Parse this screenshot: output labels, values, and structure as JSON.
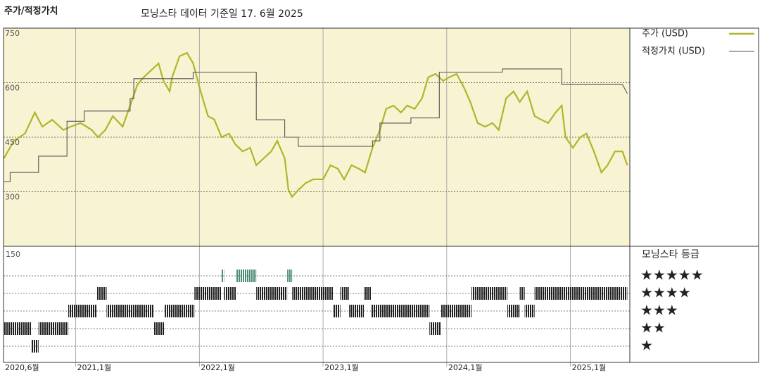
{
  "chart_data": {
    "type": "line",
    "title": "주가/적정가치",
    "subtitle": "모닝스타 데이터 기준일 17. 6월 2025",
    "xlim": [
      2020.4167,
      2025.48
    ],
    "xticks": [
      {
        "value": 2020.4167,
        "label": "2020,6월"
      },
      {
        "value": 2021,
        "label": "2021,1월"
      },
      {
        "value": 2022,
        "label": "2022,1월"
      },
      {
        "value": 2023,
        "label": "2023,1월"
      },
      {
        "value": 2024,
        "label": "2024,1월"
      },
      {
        "value": 2025,
        "label": "2025,1월"
      }
    ],
    "ylim": [
      150,
      750
    ],
    "yticks": [
      300,
      450,
      600,
      750
    ],
    "grid": true,
    "background": "#f8f3d3",
    "series": [
      {
        "name": "주가 (USD)",
        "color": "#b0b52a",
        "x": [
          2020.42,
          2020.5,
          2020.59,
          2020.67,
          2020.73,
          2020.81,
          2020.9,
          2020.96,
          2021.04,
          2021.13,
          2021.18,
          2021.24,
          2021.3,
          2021.38,
          2021.44,
          2021.5,
          2021.55,
          2021.61,
          2021.67,
          2021.71,
          2021.76,
          2021.78,
          2021.84,
          2021.9,
          2021.95,
          2022.01,
          2022.07,
          2022.12,
          2022.18,
          2022.24,
          2022.29,
          2022.35,
          2022.41,
          2022.46,
          2022.52,
          2022.58,
          2022.63,
          2022.69,
          2022.72,
          2022.75,
          2022.8,
          2022.86,
          2022.92,
          2023.0,
          2023.06,
          2023.12,
          2023.17,
          2023.23,
          2023.29,
          2023.34,
          2023.4,
          2023.46,
          2023.51,
          2023.57,
          2023.63,
          2023.68,
          2023.74,
          2023.8,
          2023.85,
          2023.91,
          2023.97,
          2024.02,
          2024.08,
          2024.14,
          2024.19,
          2024.25,
          2024.31,
          2024.37,
          2024.42,
          2024.48,
          2024.54,
          2024.59,
          2024.65,
          2024.71,
          2024.76,
          2024.82,
          2024.88,
          2024.93,
          2024.96,
          2025.02,
          2025.08,
          2025.13,
          2025.19,
          2025.25,
          2025.3,
          2025.36,
          2025.42,
          2025.46
        ],
        "values": [
          392,
          440,
          460,
          518,
          479,
          498,
          470,
          479,
          489,
          470,
          450,
          470,
          508,
          479,
          537,
          595,
          615,
          634,
          653,
          605,
          576,
          615,
          673,
          682,
          653,
          576,
          508,
          499,
          450,
          460,
          431,
          411,
          421,
          373,
          392,
          411,
          440,
          392,
          305,
          286,
          305,
          324,
          334,
          334,
          373,
          363,
          334,
          373,
          363,
          353,
          421,
          470,
          528,
          537,
          518,
          537,
          528,
          557,
          615,
          624,
          605,
          615,
          624,
          586,
          547,
          489,
          479,
          489,
          470,
          557,
          576,
          547,
          576,
          508,
          499,
          489,
          518,
          537,
          450,
          421,
          450,
          460,
          411,
          353,
          373,
          411,
          411,
          373
        ]
      },
      {
        "name": "적정가치 (USD)",
        "color": "#555555",
        "x": [
          2020.42,
          2020.47,
          2020.47,
          2020.7,
          2020.7,
          2020.93,
          2020.93,
          2021.07,
          2021.07,
          2021.44,
          2021.44,
          2021.47,
          2021.47,
          2021.95,
          2021.95,
          2022.46,
          2022.46,
          2022.69,
          2022.69,
          2022.8,
          2022.8,
          2023.4,
          2023.4,
          2023.46,
          2023.46,
          2023.71,
          2023.71,
          2023.94,
          2023.94,
          2024.45,
          2024.45,
          2024.93,
          2024.93,
          2025.42,
          2025.46
        ],
        "values": [
          328,
          328,
          353,
          353,
          398,
          398,
          494,
          494,
          522,
          522,
          556,
          556,
          611,
          611,
          629,
          629,
          498,
          498,
          450,
          450,
          425,
          425,
          440,
          440,
          489,
          489,
          503,
          503,
          629,
          629,
          638,
          638,
          595,
          595,
          570
        ]
      }
    ],
    "ratings_title": "모닝스타 등급",
    "ratings_axis_label": "150",
    "star_labels": [
      "★★★★★",
      "★★★★",
      "★★★",
      "★★",
      "★"
    ],
    "rating_color": "#222222",
    "top_rating_color": "#4e8c78",
    "rating_edges": [
      2020.42,
      2020.64,
      2020.7,
      2020.94,
      2021.17,
      2021.25,
      2021.63,
      2021.72,
      2021.96,
      2022.18,
      2022.2,
      2022.3,
      2022.46,
      2022.71,
      2022.75,
      2023.08,
      2023.14,
      2023.21,
      2023.33,
      2023.39,
      2023.86,
      2023.95,
      2024.2,
      2024.49,
      2024.59,
      2024.63,
      2024.71,
      2025.46
    ],
    "ratings": [
      2,
      1,
      2,
      3,
      4,
      3,
      2,
      3,
      4,
      5,
      4,
      5,
      4,
      5,
      4,
      3,
      4,
      3,
      4,
      3,
      2,
      3,
      4,
      3,
      4,
      3,
      4
    ]
  }
}
